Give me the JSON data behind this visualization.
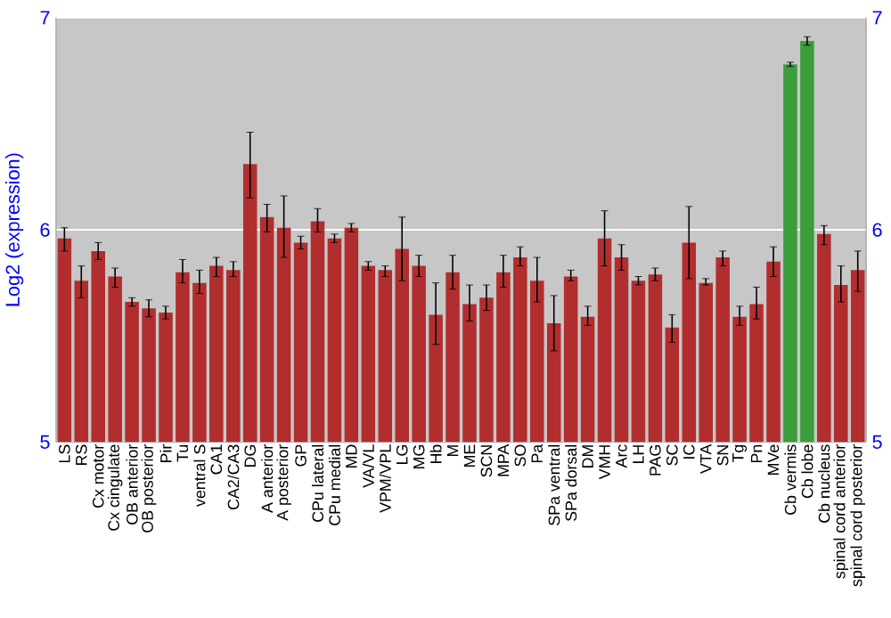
{
  "chart_data": {
    "type": "bar",
    "ylabel": "Log2 (expression)",
    "categories": [
      "LS",
      "RS",
      "Cx motor",
      "Cx cingulate",
      "OB anterior",
      "OB posterior",
      "Pir",
      "Tu",
      "ventral S",
      "CA1",
      "CA2/CA3",
      "DG",
      "A anterior",
      "A posterior",
      "GP",
      "CPu lateral",
      "CPu medial",
      "MD",
      "VA/VL",
      "VPM/VPL",
      "LG",
      "MG",
      "Hb",
      "M",
      "ME",
      "SCN",
      "MPA",
      "SO",
      "Pa",
      "SPa ventral",
      "SPa dorsal",
      "DM",
      "VMH",
      "Arc",
      "LH",
      "PAG",
      "SC",
      "IC",
      "VTA",
      "SN",
      "Tg",
      "Pn",
      "MVe",
      "Cb vermis",
      "Cb lobe",
      "Cb nucleus",
      "spinal cord anterior",
      "spinal cord posterior"
    ],
    "values": [
      5.96,
      5.76,
      5.9,
      5.78,
      5.66,
      5.63,
      5.61,
      5.8,
      5.75,
      5.83,
      5.81,
      6.31,
      6.06,
      6.01,
      5.94,
      6.04,
      5.96,
      6.01,
      5.83,
      5.81,
      5.91,
      5.83,
      5.6,
      5.8,
      5.65,
      5.68,
      5.8,
      5.87,
      5.76,
      5.56,
      5.78,
      5.59,
      5.96,
      5.87,
      5.76,
      5.79,
      5.54,
      5.94,
      5.75,
      5.87,
      5.59,
      5.65,
      5.85,
      6.78,
      6.89,
      5.98,
      5.74,
      5.81
    ],
    "errors": [
      [
        5.9,
        6.01
      ],
      [
        5.68,
        5.83
      ],
      [
        5.86,
        5.94
      ],
      [
        5.73,
        5.82
      ],
      [
        5.64,
        5.68
      ],
      [
        5.59,
        5.67
      ],
      [
        5.58,
        5.64
      ],
      [
        5.75,
        5.86
      ],
      [
        5.7,
        5.81
      ],
      [
        5.78,
        5.87
      ],
      [
        5.78,
        5.85
      ],
      [
        6.15,
        6.46
      ],
      [
        5.99,
        6.12
      ],
      [
        5.87,
        6.16
      ],
      [
        5.91,
        5.97
      ],
      [
        5.99,
        6.1
      ],
      [
        5.94,
        5.98
      ],
      [
        5.99,
        6.03
      ],
      [
        5.81,
        5.85
      ],
      [
        5.78,
        5.83
      ],
      [
        5.76,
        6.06
      ],
      [
        5.78,
        5.88
      ],
      [
        5.46,
        5.75
      ],
      [
        5.72,
        5.88
      ],
      [
        5.57,
        5.74
      ],
      [
        5.62,
        5.74
      ],
      [
        5.73,
        5.88
      ],
      [
        5.83,
        5.92
      ],
      [
        5.66,
        5.87
      ],
      [
        5.43,
        5.69
      ],
      [
        5.76,
        5.81
      ],
      [
        5.55,
        5.64
      ],
      [
        5.83,
        6.09
      ],
      [
        5.81,
        5.93
      ],
      [
        5.74,
        5.78
      ],
      [
        5.76,
        5.82
      ],
      [
        5.47,
        5.6
      ],
      [
        5.77,
        6.11
      ],
      [
        5.74,
        5.77
      ],
      [
        5.83,
        5.9
      ],
      [
        5.55,
        5.64
      ],
      [
        5.58,
        5.73
      ],
      [
        5.78,
        5.92
      ],
      [
        6.77,
        6.79
      ],
      [
        6.87,
        6.91
      ],
      [
        5.93,
        6.02
      ],
      [
        5.66,
        5.83
      ],
      [
        5.71,
        5.9
      ]
    ],
    "colors": [
      "#b22e2e",
      "#b22e2e",
      "#b22e2e",
      "#b22e2e",
      "#b22e2e",
      "#b22e2e",
      "#b22e2e",
      "#b22e2e",
      "#b22e2e",
      "#b22e2e",
      "#b22e2e",
      "#b22e2e",
      "#b22e2e",
      "#b22e2e",
      "#b22e2e",
      "#b22e2e",
      "#b22e2e",
      "#b22e2e",
      "#b22e2e",
      "#b22e2e",
      "#b22e2e",
      "#b22e2e",
      "#b22e2e",
      "#b22e2e",
      "#b22e2e",
      "#b22e2e",
      "#b22e2e",
      "#b22e2e",
      "#b22e2e",
      "#b22e2e",
      "#b22e2e",
      "#b22e2e",
      "#b22e2e",
      "#b22e2e",
      "#b22e2e",
      "#b22e2e",
      "#b22e2e",
      "#b22e2e",
      "#b22e2e",
      "#b22e2e",
      "#b22e2e",
      "#b22e2e",
      "#b22e2e",
      "#3a9e3a",
      "#3a9e3a",
      "#b22e2e",
      "#b22e2e",
      "#b22e2e"
    ],
    "ylim": [
      5,
      7
    ],
    "yticks": [
      5,
      6,
      7
    ],
    "y2lim": [
      5,
      7
    ],
    "y2ticks": [
      5,
      6,
      7
    ],
    "grid": "y"
  }
}
